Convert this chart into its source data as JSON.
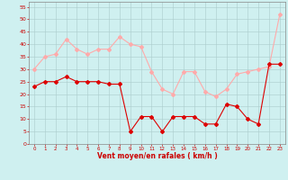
{
  "x": [
    0,
    1,
    2,
    3,
    4,
    5,
    6,
    7,
    8,
    9,
    10,
    11,
    12,
    13,
    14,
    15,
    16,
    17,
    18,
    19,
    20,
    21,
    22,
    23
  ],
  "wind_avg": [
    23,
    25,
    25,
    27,
    25,
    25,
    25,
    24,
    24,
    5,
    11,
    11,
    5,
    11,
    11,
    11,
    8,
    8,
    16,
    15,
    10,
    8,
    32,
    32
  ],
  "wind_gust": [
    30,
    35,
    36,
    42,
    38,
    36,
    38,
    38,
    43,
    40,
    39,
    29,
    22,
    20,
    29,
    29,
    21,
    19,
    22,
    28,
    29,
    30,
    31,
    52
  ],
  "avg_color": "#dd0000",
  "gust_color": "#ffaaaa",
  "bg_color": "#cff0f0",
  "grid_color": "#aacccc",
  "xlabel": "Vent moyen/en rafales ( km/h )",
  "ylim": [
    0,
    57
  ],
  "yticks": [
    0,
    5,
    10,
    15,
    20,
    25,
    30,
    35,
    40,
    45,
    50,
    55
  ],
  "xlim": [
    -0.5,
    23.5
  ],
  "xlabel_color": "#cc0000",
  "tick_color": "#cc0000",
  "spine_color": "#888888"
}
